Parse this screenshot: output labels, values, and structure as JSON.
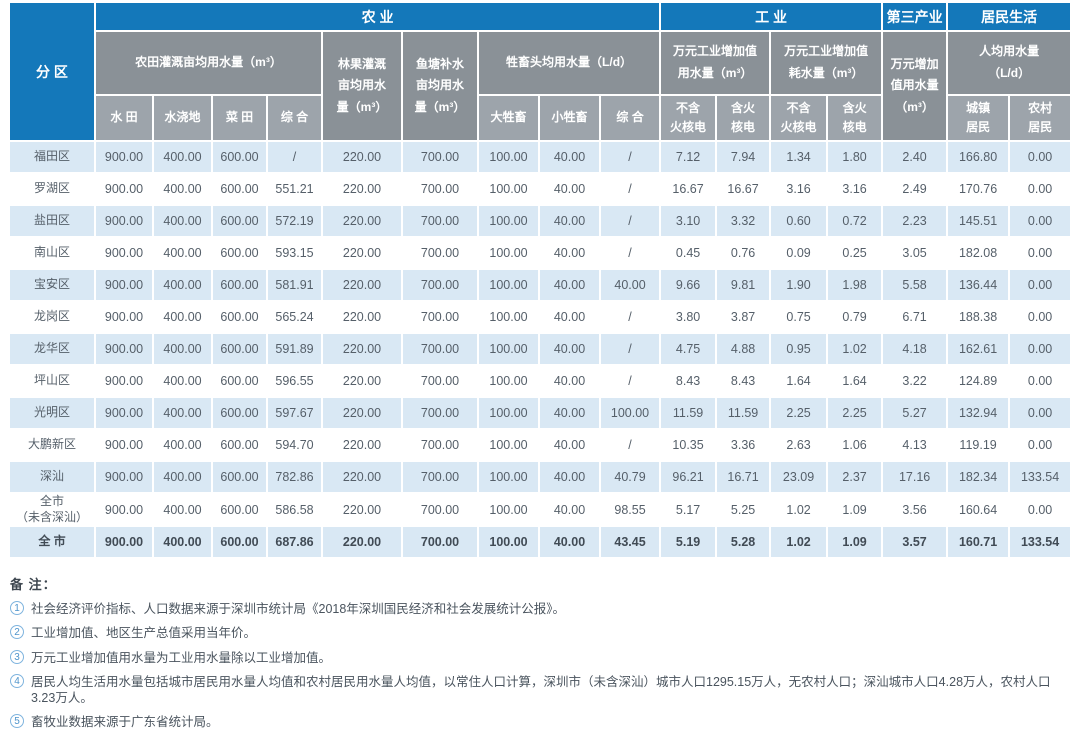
{
  "colors": {
    "header_blue": "#1478BA",
    "group_gray": "#8A9197",
    "leaf_gray": "#9DA4AB",
    "stripe_blue": "#D9E8F4"
  },
  "table": {
    "corner_label": "分 区",
    "sections": [
      {
        "label": "农 业"
      },
      {
        "label": "工 业"
      },
      {
        "label": "第三产业"
      },
      {
        "label": "居民生活"
      }
    ],
    "groups": [
      {
        "label": "农田灌溉亩均用水量（m³）"
      },
      {
        "label": "林果灌溉\n亩均用水\n量（m³）"
      },
      {
        "label": "鱼塘补水\n亩均用水\n量（m³）"
      },
      {
        "label": "牲畜头均用水量（L/d）"
      },
      {
        "label": "万元工业增加值\n用水量（m³）"
      },
      {
        "label": "万元工业增加值\n耗水量（m³）"
      },
      {
        "label": "万元增加\n值用水量\n（m³）"
      },
      {
        "label": "人均用水量\n（L/d）"
      }
    ],
    "leaf_headers": [
      "水 田",
      "水浇地",
      "菜 田",
      "综 合",
      "大牲畜",
      "小牲畜",
      "综 合",
      "不含\n火核电",
      "含火\n核电",
      "不含\n火核电",
      "含火\n核电",
      "城镇\n居民",
      "农村\n居民"
    ],
    "rows": [
      {
        "name": "福田区",
        "values": [
          "900.00",
          "400.00",
          "600.00",
          "/",
          "220.00",
          "700.00",
          "100.00",
          "40.00",
          "/",
          "7.12",
          "7.94",
          "1.34",
          "1.80",
          "2.40",
          "166.80",
          "0.00"
        ]
      },
      {
        "name": "罗湖区",
        "values": [
          "900.00",
          "400.00",
          "600.00",
          "551.21",
          "220.00",
          "700.00",
          "100.00",
          "40.00",
          "/",
          "16.67",
          "16.67",
          "3.16",
          "3.16",
          "2.49",
          "170.76",
          "0.00"
        ]
      },
      {
        "name": "盐田区",
        "values": [
          "900.00",
          "400.00",
          "600.00",
          "572.19",
          "220.00",
          "700.00",
          "100.00",
          "40.00",
          "/",
          "3.10",
          "3.32",
          "0.60",
          "0.72",
          "2.23",
          "145.51",
          "0.00"
        ]
      },
      {
        "name": "南山区",
        "values": [
          "900.00",
          "400.00",
          "600.00",
          "593.15",
          "220.00",
          "700.00",
          "100.00",
          "40.00",
          "/",
          "0.45",
          "0.76",
          "0.09",
          "0.25",
          "3.05",
          "182.08",
          "0.00"
        ]
      },
      {
        "name": "宝安区",
        "values": [
          "900.00",
          "400.00",
          "600.00",
          "581.91",
          "220.00",
          "700.00",
          "100.00",
          "40.00",
          "40.00",
          "9.66",
          "9.81",
          "1.90",
          "1.98",
          "5.58",
          "136.44",
          "0.00"
        ]
      },
      {
        "name": "龙岗区",
        "values": [
          "900.00",
          "400.00",
          "600.00",
          "565.24",
          "220.00",
          "700.00",
          "100.00",
          "40.00",
          "/",
          "3.80",
          "3.87",
          "0.75",
          "0.79",
          "6.71",
          "188.38",
          "0.00"
        ]
      },
      {
        "name": "龙华区",
        "values": [
          "900.00",
          "400.00",
          "600.00",
          "591.89",
          "220.00",
          "700.00",
          "100.00",
          "40.00",
          "/",
          "4.75",
          "4.88",
          "0.95",
          "1.02",
          "4.18",
          "162.61",
          "0.00"
        ]
      },
      {
        "name": "坪山区",
        "values": [
          "900.00",
          "400.00",
          "600.00",
          "596.55",
          "220.00",
          "700.00",
          "100.00",
          "40.00",
          "/",
          "8.43",
          "8.43",
          "1.64",
          "1.64",
          "3.22",
          "124.89",
          "0.00"
        ]
      },
      {
        "name": "光明区",
        "values": [
          "900.00",
          "400.00",
          "600.00",
          "597.67",
          "220.00",
          "700.00",
          "100.00",
          "40.00",
          "100.00",
          "11.59",
          "11.59",
          "2.25",
          "2.25",
          "5.27",
          "132.94",
          "0.00"
        ]
      },
      {
        "name": "大鹏新区",
        "values": [
          "900.00",
          "400.00",
          "600.00",
          "594.70",
          "220.00",
          "700.00",
          "100.00",
          "40.00",
          "/",
          "10.35",
          "3.36",
          "2.63",
          "1.06",
          "4.13",
          "119.19",
          "0.00"
        ]
      },
      {
        "name": "深汕",
        "values": [
          "900.00",
          "400.00",
          "600.00",
          "782.86",
          "220.00",
          "700.00",
          "100.00",
          "40.00",
          "40.79",
          "96.21",
          "16.71",
          "23.09",
          "2.37",
          "17.16",
          "182.34",
          "133.54"
        ]
      },
      {
        "name": "全市\n（未含深汕）",
        "values": [
          "900.00",
          "400.00",
          "600.00",
          "586.58",
          "220.00",
          "700.00",
          "100.00",
          "40.00",
          "98.55",
          "5.17",
          "5.25",
          "1.02",
          "1.09",
          "3.56",
          "160.64",
          "0.00"
        ]
      },
      {
        "name": "全 市",
        "bold": true,
        "values": [
          "900.00",
          "400.00",
          "600.00",
          "687.86",
          "220.00",
          "700.00",
          "100.00",
          "40.00",
          "43.45",
          "5.19",
          "5.28",
          "1.02",
          "1.09",
          "3.57",
          "160.71",
          "133.54"
        ]
      }
    ]
  },
  "notes": {
    "title": "备 注：",
    "items": [
      {
        "num": "1",
        "text": "社会经济评价指标、人口数据来源于深圳市统计局《2018年深圳国民经济和社会发展统计公报》。"
      },
      {
        "num": "2",
        "text": "工业增加值、地区生产总值采用当年价。"
      },
      {
        "num": "3",
        "text": "万元工业增加值用水量为工业用水量除以工业增加值。"
      },
      {
        "num": "4",
        "text": "居民人均生活用水量包括城市居民用水量人均值和农村居民用水量人均值，以常住人口计算，深圳市（未含深汕）城市人口1295.15万人，无农村人口；深汕城市人口4.28万人，农村人口3.23万人。"
      },
      {
        "num": "5",
        "text": "畜牧业数据来源于广东省统计局。"
      }
    ]
  }
}
